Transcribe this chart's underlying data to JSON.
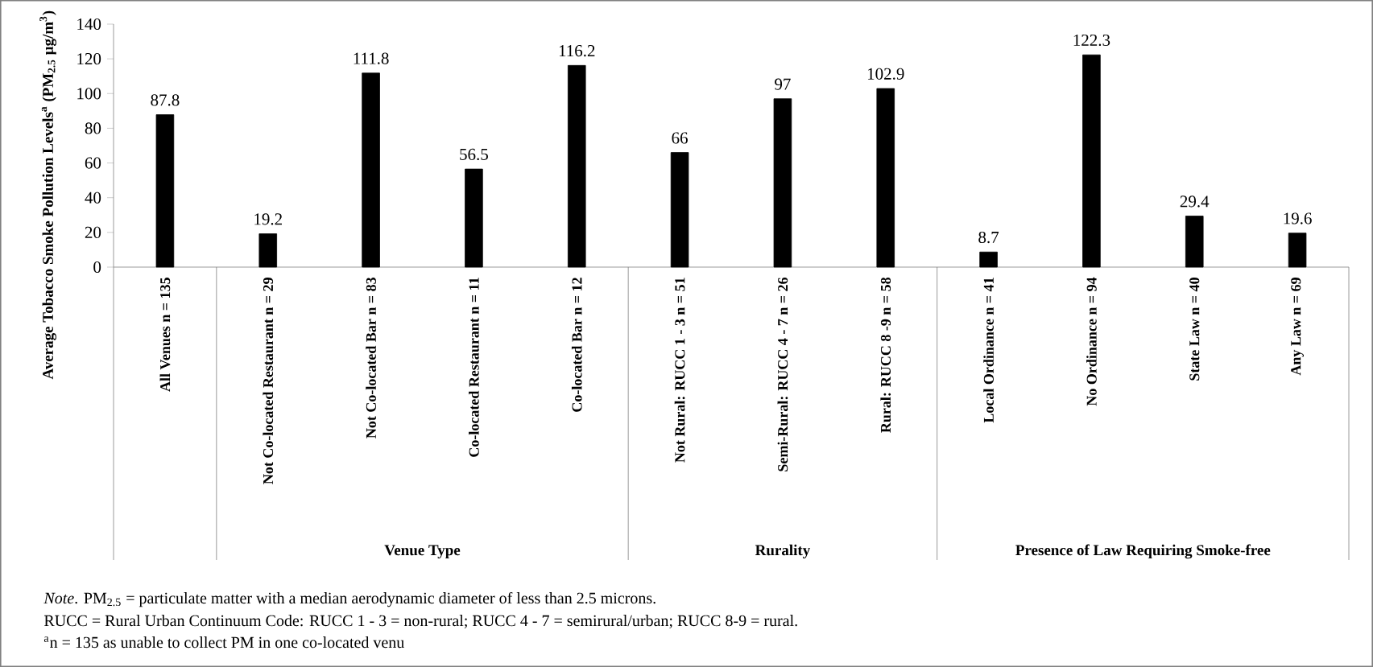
{
  "chart_data": {
    "type": "bar",
    "ylabel": "Average Tobacco Smoke Pollution Levels$^{a}$ (PM$_{2.5}$ µg/m$^{3}$)",
    "categories": [
      "All Venues n = 135",
      "Not Co-located Restaurant n = 29",
      "Not Co-located Bar n = 83",
      "Co-located Restaurant n = 11",
      "Co-located Bar n = 12",
      "Not Rural: RUCC 1 - 3 n = 51",
      "Semi-Rural: RUCC 4 - 7 n = 26",
      "Rural: RUCC 8 -9 n = 58",
      "Local Ordinance n = 41",
      "No Ordinance n = 94",
      "State Law n = 40",
      "Any Law n = 69"
    ],
    "values": [
      87.8,
      19.2,
      111.8,
      56.5,
      116.2,
      66,
      97,
      102.9,
      8.7,
      122.3,
      29.4,
      19.6
    ],
    "color": "#000000",
    "ylim": [
      0,
      140
    ],
    "yticks": [
      0,
      20,
      40,
      60,
      80,
      100,
      120,
      140
    ],
    "data_labels": true,
    "annotations": [
      "Venue Type",
      "Rurality",
      "Presence of Law Requiring Smoke-free",
      "*Note*. PM$_{2.5}$ = particulate matter with a median aerodynamic diameter of less than 2.5 microns.",
      "RUCC = Rural Urban Continuum Code: RUCC 1 - 3 = non-rural; RUCC 4 - 7 = semirural/urban; RUCC 8-9 = rural.",
      "$^{a}$n = 135 as unable to collect PM in one co-located venu"
    ]
  }
}
